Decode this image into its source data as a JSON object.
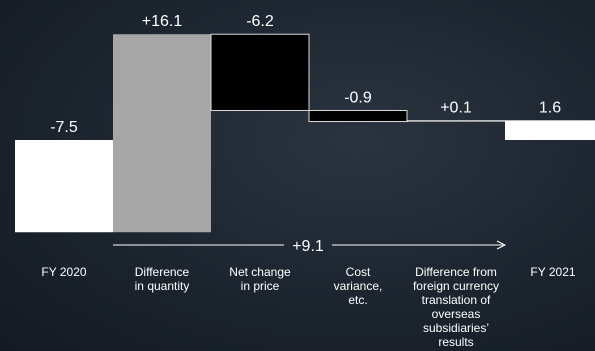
{
  "chart_data": {
    "type": "waterfall",
    "categories": [
      "FY 2020",
      "Difference in quantity",
      "Net change in price",
      "Cost variance, etc.",
      "Difference from foreign currency translation of overseas subsidiaries’ results",
      "FY 2021"
    ],
    "values": [
      -7.5,
      16.1,
      -6.2,
      -0.9,
      0.1,
      1.6
    ],
    "value_labels": [
      "-7.5",
      "+16.1",
      "-6.2",
      "-0.9",
      "+0.1",
      "1.6"
    ],
    "measures": [
      "absolute",
      "relative",
      "relative",
      "relative",
      "relative",
      "absolute"
    ],
    "colors": [
      "#ffffff",
      "#a6a6a6",
      "#000000",
      "#000000",
      "#ffffff",
      "#ffffff"
    ],
    "ylim": [
      -8,
      10
    ],
    "annotation": "+9.1"
  }
}
